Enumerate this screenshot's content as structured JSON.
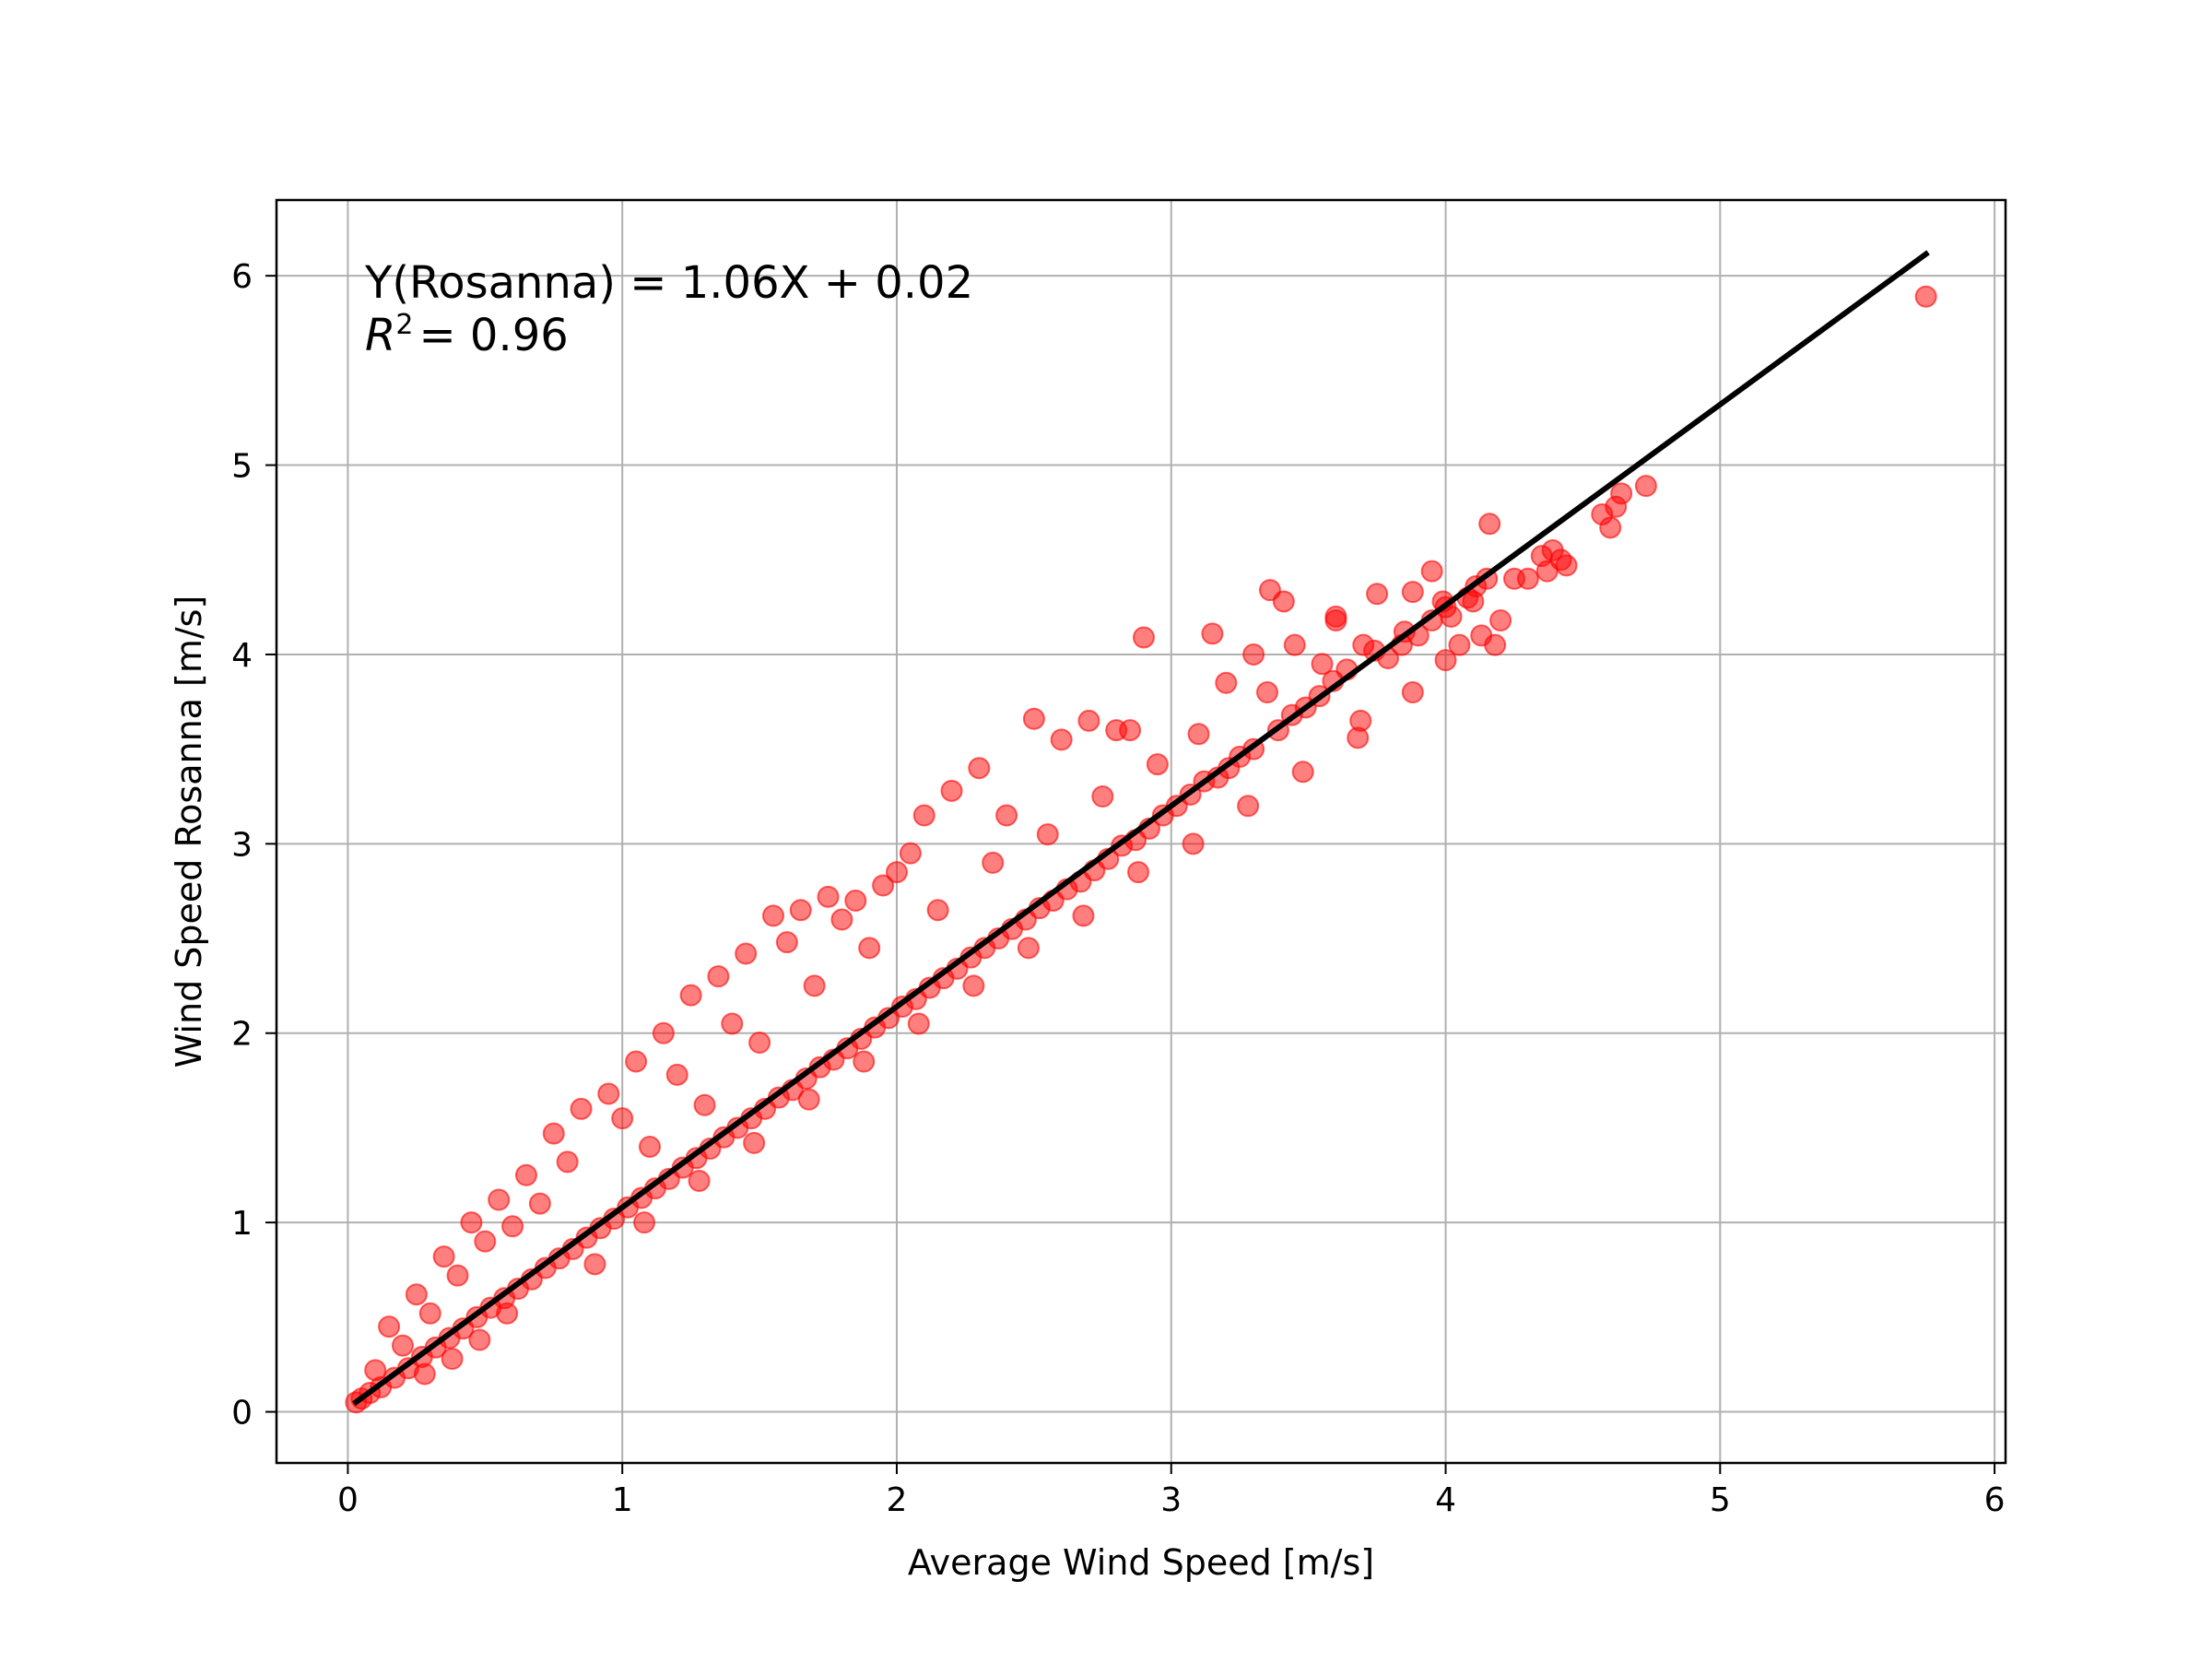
{
  "chart_data": {
    "type": "scatter",
    "title": "",
    "xlabel": "Average Wind Speed [m/s]",
    "ylabel": "Wind Speed Rosanna [m/s]",
    "xlim": [
      -0.26,
      6.04
    ],
    "ylim": [
      -0.27,
      6.4
    ],
    "x_ticks": [
      0,
      1,
      2,
      3,
      4,
      5,
      6
    ],
    "y_ticks": [
      0,
      1,
      2,
      3,
      4,
      5,
      6
    ],
    "x_tick_labels": [
      "0",
      "1",
      "2",
      "3",
      "4",
      "5",
      "6"
    ],
    "y_tick_labels": [
      "0",
      "1",
      "2",
      "3",
      "4",
      "5",
      "6"
    ],
    "grid": true,
    "legend": "none",
    "annotations": {
      "equation": "Y(Rosanna) = 1.06X + 0.02",
      "r2_symbol": "R",
      "r2_exponent": "2",
      "r2_value": "= 0.96"
    },
    "colors": {
      "points": "#ff0000",
      "fit_line": "#000000",
      "grid": "#b0b0b0",
      "axes": "#000000"
    },
    "fit": {
      "slope": 1.06,
      "intercept": 0.02,
      "x_range": [
        0.03,
        5.75
      ]
    },
    "series": [
      {
        "kind": "points",
        "x": [
          5.75,
          4.73,
          4.64,
          4.62,
          4.6,
          4.57,
          4.44,
          4.42,
          4.39,
          4.37,
          4.3,
          4.2,
          4.16,
          4.11,
          4.13,
          4.08,
          4.05,
          4.02,
          3.99,
          4.0,
          3.95,
          3.9,
          3.88,
          3.84,
          3.79,
          3.74,
          3.69,
          3.64,
          3.59,
          3.54,
          3.49,
          3.44,
          3.39,
          3.36,
          3.41,
          3.3,
          3.25,
          3.21,
          3.17,
          3.12,
          3.07,
          3.02,
          2.97,
          2.92,
          2.87,
          2.82,
          2.77,
          2.72,
          2.67,
          2.62,
          2.57,
          2.52,
          2.47,
          2.42,
          2.37,
          2.32,
          2.27,
          2.22,
          2.17,
          2.12,
          2.07,
          2.02,
          1.97,
          1.92,
          1.87,
          1.82,
          1.77,
          1.72,
          1.67,
          1.62,
          1.57,
          1.52,
          1.47,
          1.42,
          1.37,
          1.32,
          1.27,
          1.22,
          1.17,
          1.12,
          1.07,
          1.02,
          0.97,
          0.92,
          0.87,
          0.82,
          0.77,
          0.72,
          0.67,
          0.62,
          0.57,
          0.52,
          0.47,
          0.42,
          0.37,
          0.32,
          0.27,
          0.22,
          0.17,
          0.12,
          0.08,
          0.05,
          0.03,
          2.9,
          2.85,
          3.15,
          3.3,
          3.45,
          3.6,
          3.75,
          3.95,
          4.15,
          2.5,
          2.6,
          2.7,
          2.3,
          2.2,
          2.1,
          2.05,
          1.95,
          1.85,
          1.75,
          1.65,
          1.55,
          1.45,
          1.35,
          1.25,
          1.15,
          1.05,
          0.95,
          0.85,
          0.75,
          0.65,
          0.55,
          0.45,
          0.35,
          0.25,
          0.15,
          1.0,
          1.2,
          1.4,
          1.6,
          1.8,
          2.0,
          2.4,
          2.8,
          3.2,
          3.6,
          4.0,
          0.7,
          0.5,
          0.3,
          0.4,
          0.6,
          0.8,
          1.1,
          1.3,
          1.5,
          1.7,
          1.9,
          2.15,
          2.35,
          2.55,
          2.75,
          2.95,
          3.1,
          3.35,
          3.55,
          3.7,
          3.85,
          4.1,
          4.25,
          4.35,
          0.2,
          0.1,
          0.28,
          0.38,
          0.48,
          0.58,
          0.9,
          1.08,
          1.28,
          1.48,
          1.68,
          1.88,
          2.08,
          2.28,
          2.48,
          2.68,
          2.88,
          3.08,
          3.28,
          3.48,
          3.68,
          3.88,
          4.18
        ],
        "y": [
          5.89,
          4.89,
          4.85,
          4.78,
          4.67,
          4.74,
          4.47,
          4.5,
          4.55,
          4.44,
          4.4,
          4.18,
          4.69,
          4.36,
          4.1,
          4.3,
          4.05,
          4.2,
          4.28,
          3.97,
          4.18,
          4.1,
          4.33,
          4.05,
          3.98,
          4.02,
          3.65,
          3.92,
          3.86,
          3.78,
          3.72,
          3.68,
          3.6,
          4.34,
          4.28,
          3.5,
          3.46,
          3.4,
          3.35,
          3.33,
          3.26,
          3.2,
          3.15,
          3.08,
          3.02,
          2.99,
          2.92,
          2.86,
          2.8,
          2.76,
          2.7,
          2.66,
          2.6,
          2.55,
          2.5,
          2.45,
          2.4,
          2.34,
          2.29,
          2.24,
          2.18,
          2.14,
          2.08,
          2.03,
          1.97,
          1.92,
          1.86,
          1.82,
          1.76,
          1.7,
          1.66,
          1.6,
          1.55,
          1.5,
          1.45,
          1.39,
          1.34,
          1.29,
          1.23,
          1.18,
          1.13,
          1.08,
          1.02,
          0.97,
          0.92,
          0.86,
          0.81,
          0.76,
          0.7,
          0.65,
          0.6,
          0.55,
          0.5,
          0.44,
          0.39,
          0.34,
          0.29,
          0.23,
          0.18,
          0.13,
          0.1,
          0.07,
          0.05,
          4.09,
          3.6,
          4.11,
          4.0,
          4.05,
          4.18,
          4.32,
          4.44,
          4.4,
          3.66,
          3.55,
          3.65,
          3.4,
          3.28,
          3.15,
          2.95,
          2.78,
          2.7,
          2.72,
          2.65,
          2.62,
          2.42,
          2.3,
          2.2,
          2.0,
          1.85,
          1.68,
          1.6,
          1.47,
          1.25,
          1.12,
          1.0,
          0.82,
          0.62,
          0.45,
          1.55,
          1.78,
          2.05,
          2.48,
          2.6,
          2.85,
          3.15,
          3.6,
          3.85,
          4.2,
          4.25,
          1.1,
          0.9,
          0.52,
          0.72,
          0.98,
          1.32,
          1.4,
          1.62,
          1.95,
          2.25,
          2.45,
          2.65,
          2.9,
          3.05,
          3.25,
          3.42,
          3.58,
          3.8,
          3.95,
          4.05,
          4.12,
          4.28,
          4.4,
          4.52,
          0.35,
          0.22,
          0.2,
          0.28,
          0.38,
          0.52,
          0.78,
          1.0,
          1.22,
          1.42,
          1.65,
          1.85,
          2.05,
          2.25,
          2.45,
          2.62,
          2.85,
          3.0,
          3.2,
          3.38,
          3.56,
          3.8,
          4.05
        ]
      }
    ]
  }
}
